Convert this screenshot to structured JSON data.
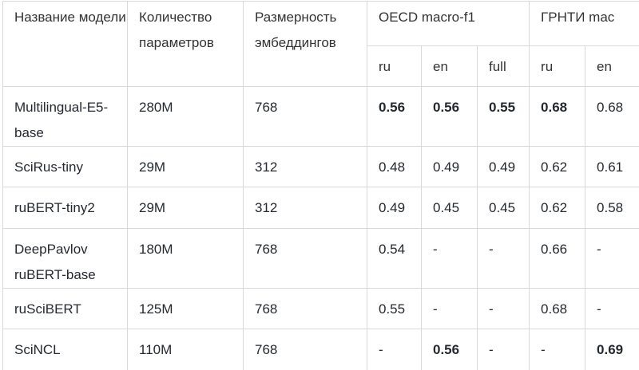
{
  "header": {
    "model_name": "Название модели",
    "params": "Количество параметров",
    "embed_dim": "Размерность эмбеддингов",
    "oecd": "OECD macro-f1",
    "grnti": "ГРНТИ mac",
    "sub": [
      "ru",
      "en",
      "full",
      "ru",
      "en"
    ]
  },
  "rows": [
    {
      "model": "Multilingual-E5-base",
      "params": "280M",
      "dim": "768",
      "cells": [
        {
          "v": "0.56",
          "b": true
        },
        {
          "v": "0.56",
          "b": true
        },
        {
          "v": "0.55",
          "b": true
        },
        {
          "v": "0.68",
          "b": true
        },
        {
          "v": "0.68",
          "b": false
        }
      ]
    },
    {
      "model": "SciRus-tiny",
      "params": "29M",
      "dim": "312",
      "cells": [
        {
          "v": "0.48",
          "b": false
        },
        {
          "v": "0.49",
          "b": false
        },
        {
          "v": "0.49",
          "b": false
        },
        {
          "v": "0.62",
          "b": false
        },
        {
          "v": "0.61",
          "b": false
        }
      ]
    },
    {
      "model": "ruBERT-tiny2",
      "params": "29M",
      "dim": "312",
      "cells": [
        {
          "v": "0.49",
          "b": false
        },
        {
          "v": "0.45",
          "b": false
        },
        {
          "v": "0.45",
          "b": false
        },
        {
          "v": "0.62",
          "b": false
        },
        {
          "v": "0.58",
          "b": false
        }
      ]
    },
    {
      "model": "DeepPavlov ruBERT-base",
      "params": "180M",
      "dim": "768",
      "cells": [
        {
          "v": "0.54",
          "b": false
        },
        {
          "v": "-",
          "b": false
        },
        {
          "v": "-",
          "b": false
        },
        {
          "v": "0.66",
          "b": false
        },
        {
          "v": "-",
          "b": false
        }
      ]
    },
    {
      "model": "ruSciBERT",
      "params": "125M",
      "dim": "768",
      "cells": [
        {
          "v": "0.55",
          "b": false
        },
        {
          "v": "-",
          "b": false
        },
        {
          "v": "-",
          "b": false
        },
        {
          "v": "0.68",
          "b": false
        },
        {
          "v": "-",
          "b": false
        }
      ]
    },
    {
      "model": "SciNCL",
      "params": "110M",
      "dim": "768",
      "cells": [
        {
          "v": "-",
          "b": false
        },
        {
          "v": "0.56",
          "b": true
        },
        {
          "v": "-",
          "b": false
        },
        {
          "v": "-",
          "b": false
        },
        {
          "v": "0.69",
          "b": true
        }
      ]
    }
  ]
}
